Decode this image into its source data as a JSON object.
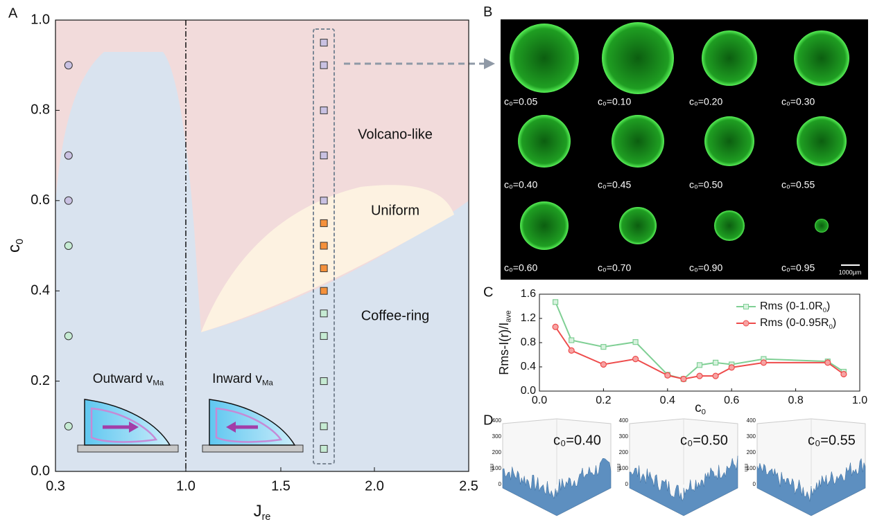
{
  "chart_data": [
    {
      "type": "scatter",
      "panel": "A",
      "xlabel": {
        "text": "J",
        "sub": "re"
      },
      "ylabel": {
        "text": "c",
        "sub": "0"
      },
      "xlim": [
        0.3,
        2.5
      ],
      "ylim": [
        0,
        1
      ],
      "xticks": [
        0.3,
        {
          "value": 1,
          "label": "1.0"
        },
        1.5,
        {
          "value": 2,
          "label": "2.0"
        },
        2.5
      ],
      "yticks": [
        {
          "value": 0,
          "label": "0.0"
        },
        0.2,
        0.4,
        0.6,
        0.8,
        {
          "value": 1,
          "label": "1.0"
        }
      ],
      "series": [
        {
          "marker": "circle",
          "color": "#c6ebd3",
          "x": [
            0.37,
            0.37,
            0.37
          ],
          "values": [
            0.1,
            0.3,
            0.5
          ]
        },
        {
          "marker": "circle",
          "color": "#c9c1e2",
          "x": [
            0.37,
            0.37,
            0.37
          ],
          "values": [
            0.6,
            0.7,
            0.9
          ]
        },
        {
          "marker": "square",
          "color": "#c6ebd3",
          "x": [
            1.73,
            1.73,
            1.73,
            1.73,
            1.73
          ],
          "values": [
            0.05,
            0.1,
            0.2,
            0.3,
            0.35
          ]
        },
        {
          "marker": "square",
          "color": "#f5913b",
          "x": [
            1.73,
            1.73,
            1.73,
            1.73
          ],
          "values": [
            0.4,
            0.45,
            0.5,
            0.55
          ]
        },
        {
          "marker": "square",
          "color": "#c9c1e2",
          "x": [
            1.73,
            1.73,
            1.73,
            1.73,
            1.73
          ],
          "values": [
            0.6,
            0.7,
            0.8,
            0.9,
            0.95
          ]
        }
      ],
      "annotations": [
        {
          "text": "Volcano-like"
        },
        {
          "text": "Uniform"
        },
        {
          "text": "Coffee-ring"
        },
        {
          "text": "Outward v",
          "sub": "Ma"
        },
        {
          "text": "Inward v",
          "sub": "Ma"
        }
      ]
    },
    {
      "type": "line",
      "panel": "C",
      "xlabel": {
        "text": "c",
        "sub": "0"
      },
      "ylabel": {
        "text": "Rms-I(r)/I",
        "sub": "ave"
      },
      "xlim": [
        0,
        1
      ],
      "ylim": [
        0,
        1.6
      ],
      "xticks": [
        {
          "value": 0,
          "label": "0.0"
        },
        0.2,
        0.4,
        0.6,
        0.8,
        {
          "value": 1,
          "label": "1.0"
        }
      ],
      "yticks": [
        {
          "value": 0,
          "label": "0.0"
        },
        0.4,
        0.8,
        1.2,
        1.6
      ],
      "x": [
        0.05,
        0.1,
        0.2,
        0.3,
        0.4,
        0.45,
        0.5,
        0.55,
        0.6,
        0.7,
        0.9,
        0.95
      ],
      "series": [
        {
          "name": {
            "text": "Rms (0-1.0R",
            "sub": "0",
            "end": ")"
          },
          "color": "#7fcf94",
          "marker": "square",
          "values": [
            1.47,
            0.84,
            0.73,
            0.81,
            0.27,
            0.2,
            0.43,
            0.47,
            0.44,
            0.53,
            0.49,
            0.32
          ]
        },
        {
          "name": {
            "text": "Rms (0-0.95R",
            "sub": "0",
            "end": ")"
          },
          "color": "#ee4b4b",
          "marker": "circle",
          "values": [
            1.06,
            0.67,
            0.44,
            0.53,
            0.26,
            0.2,
            0.25,
            0.25,
            0.39,
            0.47,
            0.47,
            0.28
          ]
        }
      ],
      "legend": "upper right"
    }
  ],
  "panel_labels": [
    "A",
    "B",
    "C",
    "D"
  ],
  "panel_b": {
    "images": [
      "c₀=0.05",
      "c₀=0.10",
      "c₀=0.20",
      "c₀=0.30",
      "c₀=0.40",
      "c₀=0.45",
      "c₀=0.50",
      "c₀=0.55",
      "c₀=0.60",
      "c₀=0.70",
      "c₀=0.90",
      "c₀=0.95"
    ],
    "scale_bar": "1000μm"
  },
  "panel_d": {
    "plots": [
      "c₀=0.40",
      "c₀=0.50",
      "c₀=0.55"
    ],
    "zticks": [
      "0",
      "100",
      "200",
      "300",
      "400"
    ],
    "zlabel": "nm"
  }
}
